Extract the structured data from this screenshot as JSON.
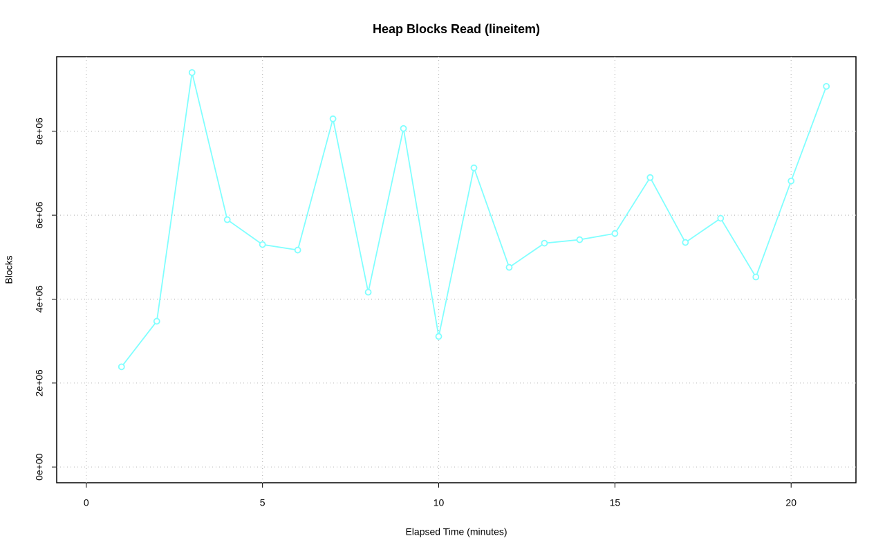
{
  "chart_data": {
    "type": "line",
    "title": "Heap Blocks Read (lineitem)",
    "xlabel": "Elapsed Time (minutes)",
    "ylabel": "Blocks",
    "x": [
      1,
      2,
      3,
      4,
      5,
      6,
      7,
      8,
      9,
      10,
      11,
      12,
      13,
      14,
      15,
      16,
      17,
      18,
      19,
      20,
      21
    ],
    "series": [
      {
        "name": "lineitem",
        "color": "#80ffff",
        "values": [
          2387000,
          3473000,
          9399000,
          5893000,
          5300000,
          5169000,
          8296000,
          4165000,
          8066000,
          3111000,
          7128000,
          4757000,
          5333000,
          5416000,
          5564000,
          6897000,
          5350000,
          5926000,
          4527000,
          6815000,
          9070000
        ]
      }
    ],
    "xlim": [
      -0.84,
      21.84
    ],
    "xticks": [
      0,
      5,
      10,
      15,
      20
    ],
    "ylim": [
      -376000,
      9776000
    ],
    "yticks": [
      {
        "value": 0,
        "label": "0e+00"
      },
      {
        "value": 2000000,
        "label": "2e+06"
      },
      {
        "value": 4000000,
        "label": "4e+06"
      },
      {
        "value": 6000000,
        "label": "6e+06"
      },
      {
        "value": 8000000,
        "label": "8e+06"
      }
    ],
    "grid": true
  }
}
